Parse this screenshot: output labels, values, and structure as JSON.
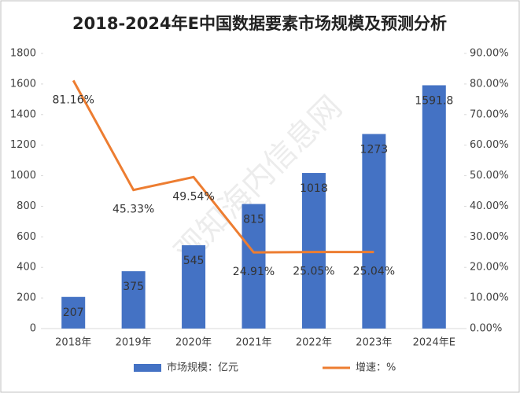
{
  "chart_data": {
    "type": "bar",
    "title": "2018-2024年E中国数据要素市场规模及预测分析",
    "watermark": "观知海内信息网",
    "categories": [
      "2018年",
      "2019年",
      "2020年",
      "2021年",
      "2022年",
      "2023年",
      "2024年E"
    ],
    "series": [
      {
        "name": "市场规模：亿元",
        "color": "#4472c4",
        "type": "bar",
        "values": [
          207,
          375,
          545,
          815,
          1018,
          1273,
          1591.8
        ]
      },
      {
        "name": "增速：%",
        "color": "#ed7d31",
        "type": "line",
        "axis": "y2",
        "values": [
          81.16,
          45.33,
          49.54,
          24.91,
          25.05,
          25.04,
          null
        ],
        "value_labels": [
          "81.16%",
          "45.33%",
          "49.54%",
          "24.91%",
          "25.05%",
          "25.04%",
          null
        ]
      }
    ],
    "ylim": [
      0,
      1800
    ],
    "yticks": [
      0,
      200,
      400,
      600,
      800,
      1000,
      1200,
      1400,
      1600,
      1800
    ],
    "y2lim": [
      0,
      90
    ],
    "y2ticks": [
      {
        "value": 0,
        "label": "0.00%"
      },
      {
        "value": 10,
        "label": "10.00%"
      },
      {
        "value": 20,
        "label": "20.00%"
      },
      {
        "value": 30,
        "label": "30.00%"
      },
      {
        "value": 40,
        "label": "40.00%"
      },
      {
        "value": 50,
        "label": "50.00%"
      },
      {
        "value": 60,
        "label": "60.00%"
      },
      {
        "value": 70,
        "label": "70.00%"
      },
      {
        "value": 80,
        "label": "80.00%"
      },
      {
        "value": 90,
        "label": "90.00%"
      }
    ],
    "grid": false,
    "legend": "bottom"
  }
}
